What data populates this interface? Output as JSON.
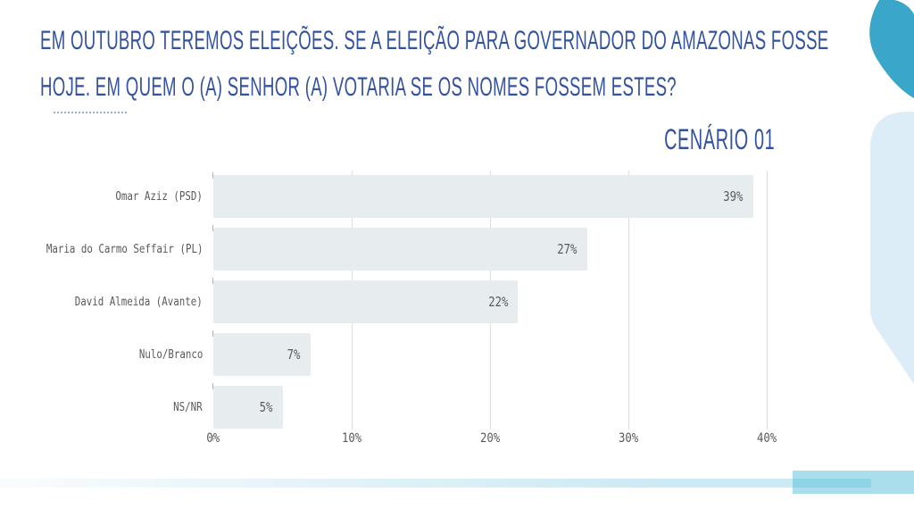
{
  "slide": {
    "title_line1": "EM OUTUBRO TEREMOS ELEIÇÕES. SE A ELEIÇÃO PARA GOVERNADOR DO AMAZONAS FOSSE",
    "title_line2": "HOJE. EM QUEM O (A) SENHOR (A) VOTARIA SE OS NOMES FOSSEM ESTES?",
    "scenario_label": "CENÁRIO 01"
  },
  "chart_data": {
    "type": "bar",
    "orientation": "horizontal",
    "title": "CENÁRIO 01",
    "categories": [
      "Omar Aziz (PSD)",
      "Maria do Carmo Seffair (PL)",
      "David Almeida (Avante)",
      "Nulo/Branco",
      "NS/NR"
    ],
    "values": [
      39,
      27,
      22,
      7,
      5
    ],
    "value_labels": [
      "39%",
      "27%",
      "22%",
      "7%",
      "5%"
    ],
    "x_tick_labels": [
      "0%",
      "10%",
      "20%",
      "30%",
      "40%"
    ],
    "xlim": [
      0,
      40
    ],
    "xlabel": "",
    "ylabel": "",
    "grid": "vertical",
    "legend": "none",
    "value_label_position": "inside-end"
  },
  "colors": {
    "title_blue": "#33529f",
    "bar_fill": "#e7edee",
    "label_gray": "#595959",
    "gridline": "#dedede",
    "accent_teal": "#3aa6c9",
    "light_blue_shape": "#dcedf8",
    "strip_light": "#cde9f3",
    "strip_medium": "#abdeec",
    "strip_dark": "#8fd4e5"
  }
}
